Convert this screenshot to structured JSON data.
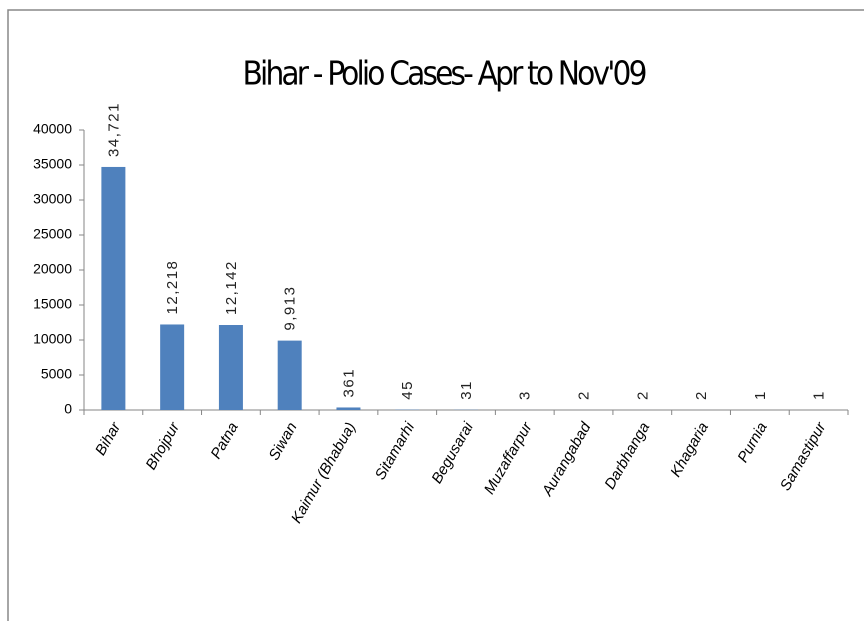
{
  "chart_data": {
    "type": "bar",
    "title": "Bihar - Polio Cases- Apr to Nov'09",
    "categories": [
      "Bihar",
      "Bhojpur",
      "Patna",
      "Siwan",
      "Kaimur (Bhabua)",
      "Sitamarhi",
      "Begusarai",
      "Muzaffarpur",
      "Aurangabad",
      "Darbhanga",
      "Khagaria",
      "Purnia",
      "Samastipur"
    ],
    "values": [
      34721,
      12218,
      12142,
      9913,
      361,
      45,
      31,
      3,
      2,
      2,
      2,
      1,
      1
    ],
    "value_labels": [
      "34,721",
      "12,218",
      "12,142",
      "9,913",
      "361",
      "45",
      "31",
      "3",
      "2",
      "2",
      "2",
      "1",
      "1"
    ],
    "color": "#4f81bd",
    "ylim": [
      0,
      40000
    ],
    "yticks": [
      0,
      5000,
      10000,
      15000,
      20000,
      25000,
      30000,
      35000,
      40000
    ],
    "grid": false
  }
}
